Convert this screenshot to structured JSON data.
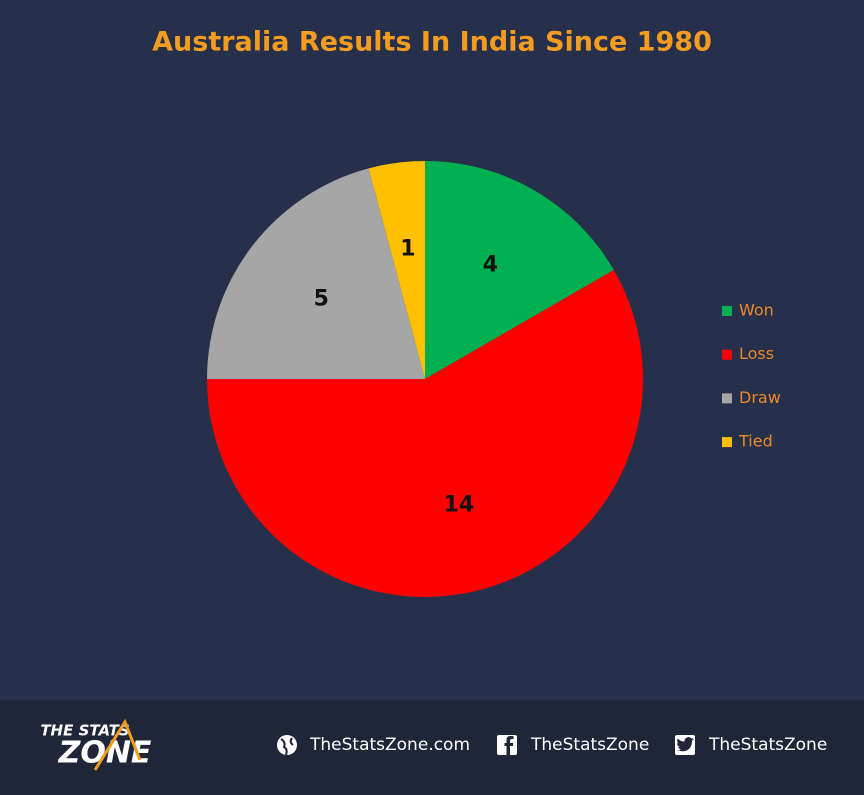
{
  "chart_data": {
    "type": "pie",
    "title": "Australia Results In India Since 1980",
    "categories": [
      "Won",
      "Loss",
      "Draw",
      "Tied"
    ],
    "values": [
      4,
      14,
      5,
      1
    ],
    "colors": [
      "#00b050",
      "#ff0000",
      "#a6a6a6",
      "#ffc000"
    ],
    "legend": "right"
  },
  "footer": {
    "logo_top": "THE STATS",
    "logo_bottom": "ZONE",
    "website": "TheStatsZone.com",
    "facebook": "TheStatsZone",
    "twitter": "TheStatsZone"
  }
}
